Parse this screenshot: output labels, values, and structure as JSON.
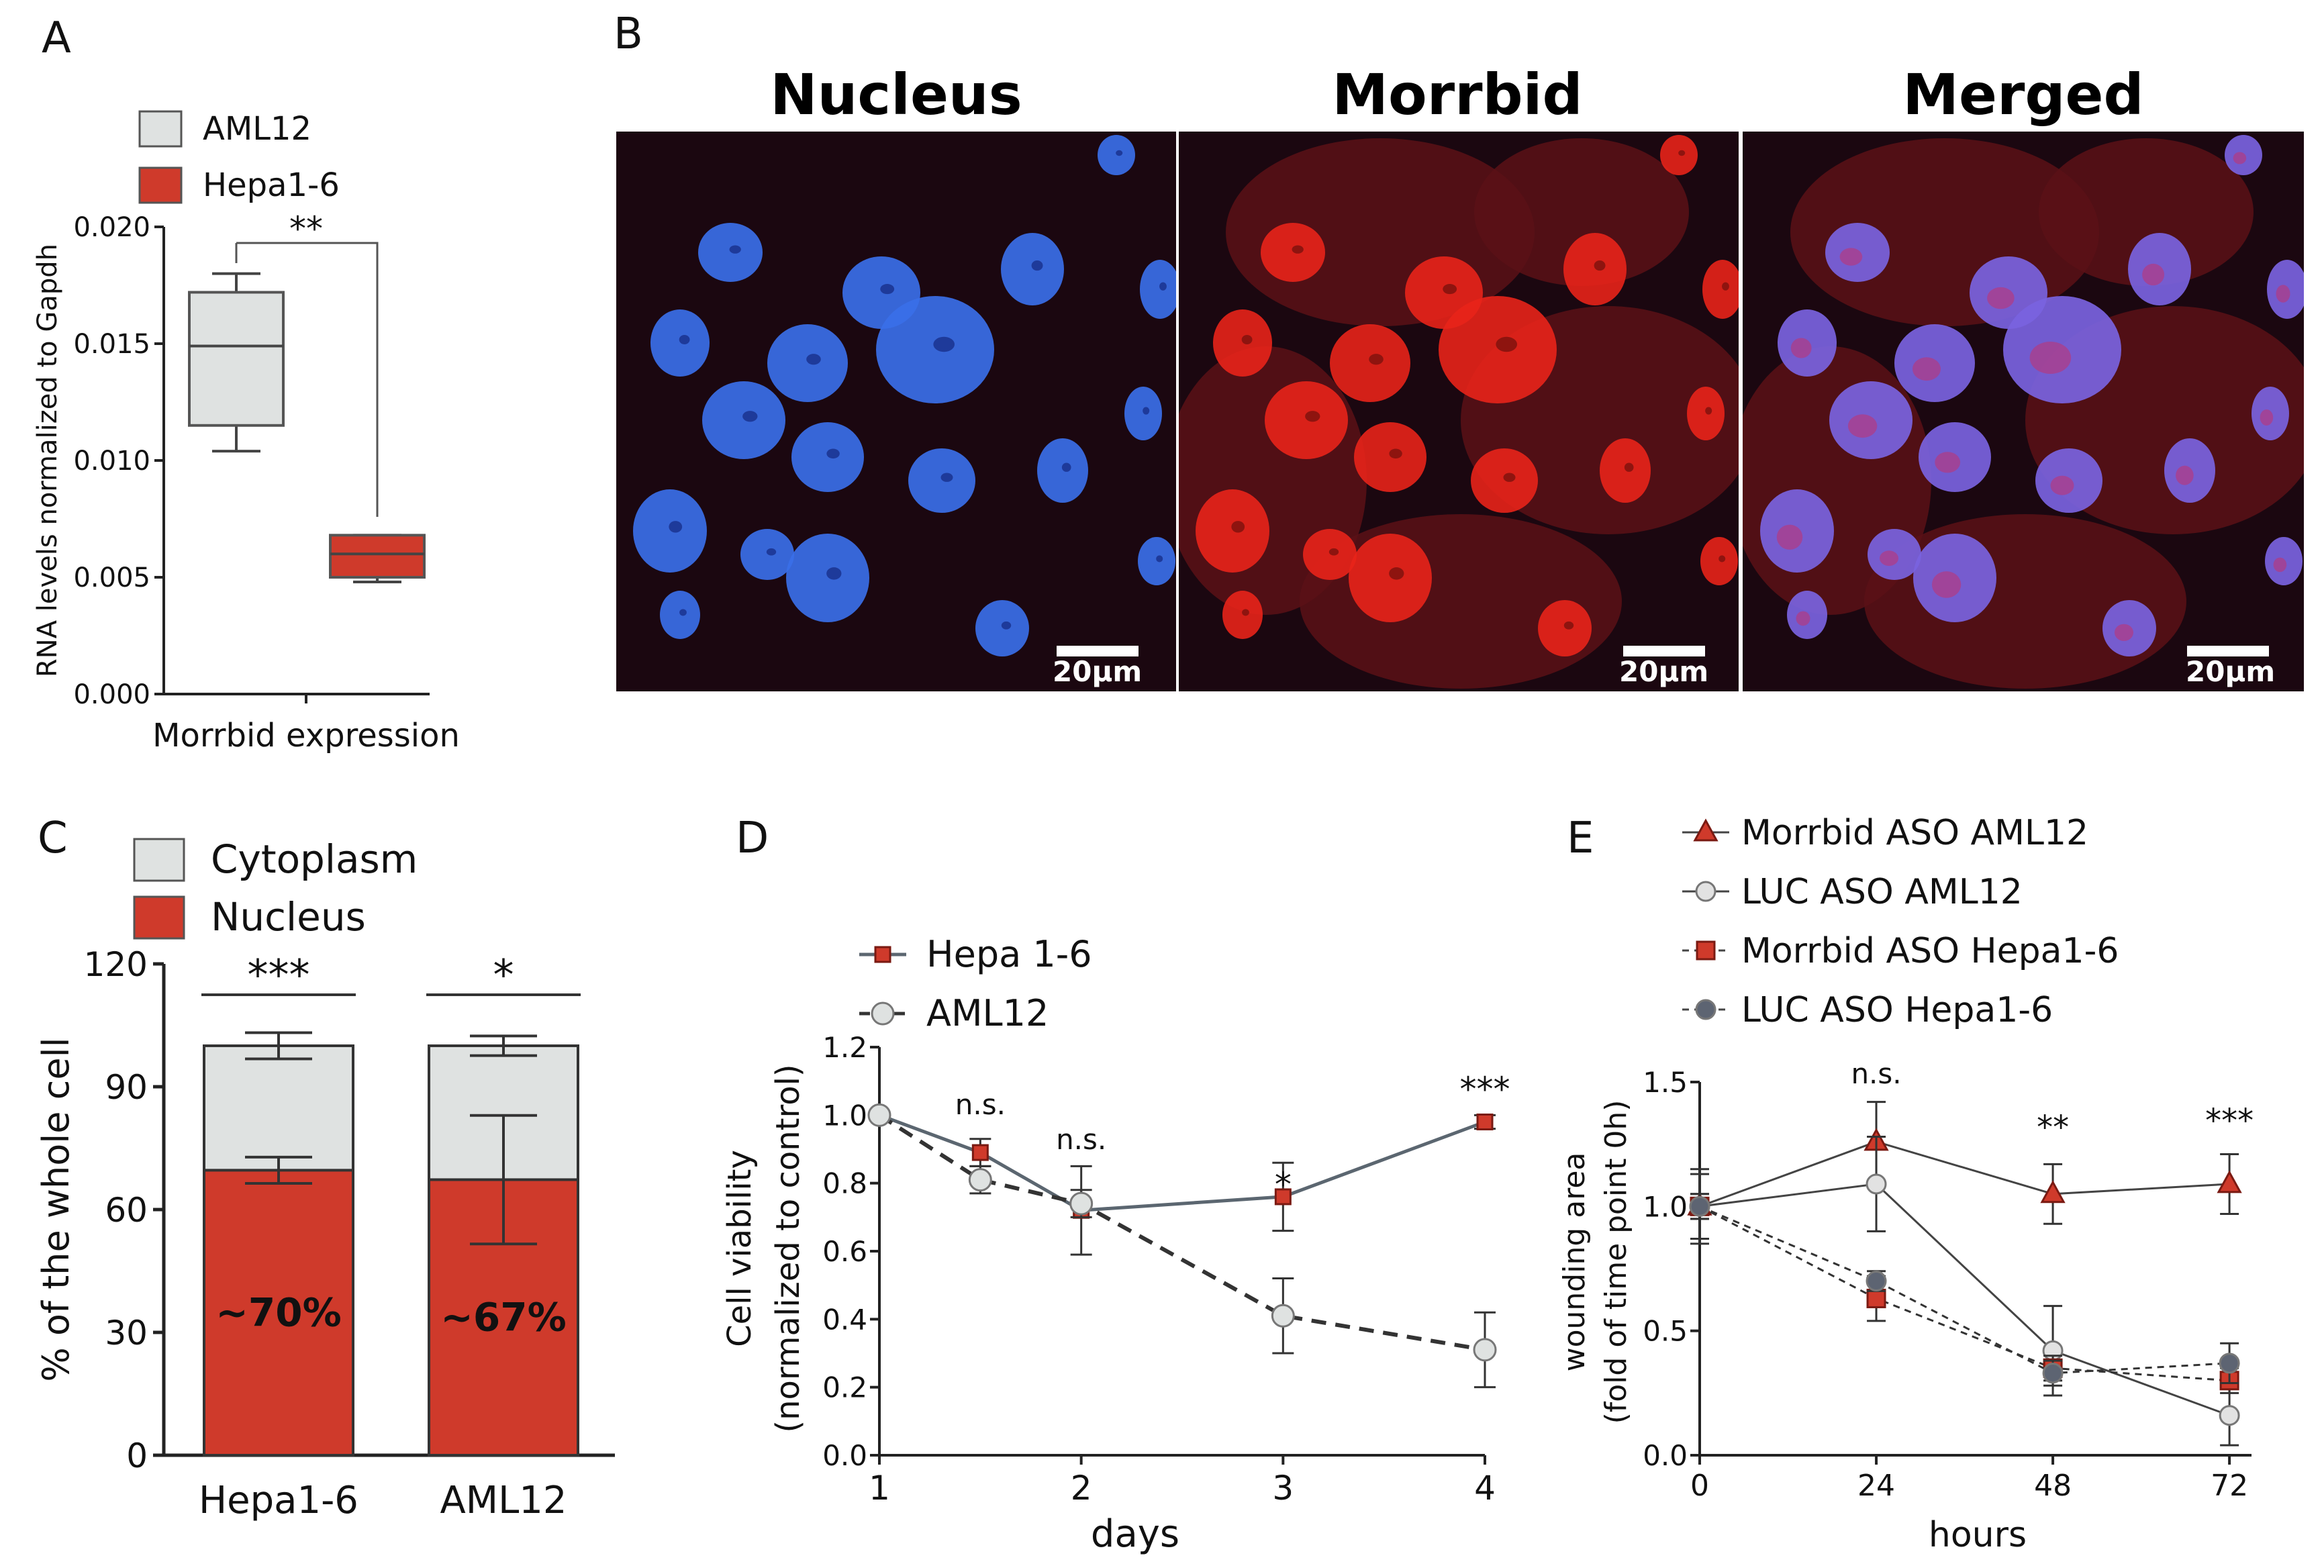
{
  "panel_letters": {
    "a": "A",
    "b": "B",
    "c": "C",
    "d": "D",
    "e": "E"
  },
  "panel_b": {
    "titles": [
      "Nucleus",
      "Morrbid",
      "Merged"
    ],
    "scale_label": "20µm",
    "colors": {
      "nucleus": "#3a6fe8",
      "morrbid": "#e8231a",
      "background": "#1b0710"
    }
  },
  "chart_data": [
    {
      "panel": "A",
      "type": "box",
      "legend": [
        "AML12",
        "Hepa1-6"
      ],
      "colors": [
        "#dfe2e1",
        "#cf3a2b"
      ],
      "ylabel": "RNA levels normalized to Gapdh",
      "xlabel": "Morrbid expression",
      "ylim": [
        0,
        0.02
      ],
      "yticks": [
        "0.000",
        "0.005",
        "0.010",
        "0.015",
        "0.020"
      ],
      "boxes": [
        {
          "name": "AML12",
          "min": 0.0104,
          "q1": 0.0115,
          "median": 0.0149,
          "q3": 0.0172,
          "max": 0.018
        },
        {
          "name": "Hepa1-6",
          "min": 0.0048,
          "q1": 0.005,
          "median": 0.006,
          "q3": 0.0068,
          "max": 0.0068
        }
      ],
      "significance": "**"
    },
    {
      "panel": "C",
      "type": "bar",
      "stacked": true,
      "legend": [
        "Cytoplasm",
        "Nucleus"
      ],
      "colors": [
        "#dfe2e1",
        "#cf3a2b"
      ],
      "categories": [
        "Hepa1-6",
        "AML12"
      ],
      "ylabel": "% of the whole cell",
      "ylim": [
        0,
        120
      ],
      "yticks": [
        "0",
        "30",
        "60",
        "90",
        "120"
      ],
      "series": [
        {
          "name": "Nucleus",
          "values": [
            69.6,
            67.3
          ],
          "errors": [
            3.2,
            15.7
          ]
        },
        {
          "name": "Cytoplasm",
          "values": [
            30.4,
            32.7
          ],
          "errors": [
            3.2,
            2.4
          ]
        }
      ],
      "bar_labels": [
        "~70%",
        "~67%"
      ],
      "significance": [
        "***",
        "*"
      ]
    },
    {
      "panel": "D",
      "type": "line",
      "xlabel": "days",
      "ylabel_lines": [
        "Cell viability",
        "(normalized to control)"
      ],
      "xlim": [
        1,
        4
      ],
      "ylim": [
        0,
        1.2
      ],
      "xticks": [
        "1",
        "2",
        "3",
        "4"
      ],
      "yticks": [
        "0.0",
        "0.2",
        "0.4",
        "0.6",
        "0.8",
        "1.0",
        "1.2"
      ],
      "series": [
        {
          "name": "Hepa 1-6",
          "x": [
            1,
            1.5,
            2,
            3,
            4
          ],
          "y": [
            1.0,
            0.89,
            0.72,
            0.76,
            0.98
          ],
          "err": [
            0,
            0.04,
            0.13,
            0.1,
            0.02
          ]
        },
        {
          "name": "AML12",
          "x": [
            1,
            1.5,
            2,
            3,
            4
          ],
          "y": [
            1.0,
            0.81,
            0.74,
            0.41,
            0.31
          ],
          "err": [
            0,
            0.04,
            0.04,
            0.11,
            0.11
          ]
        }
      ],
      "annotations": [
        {
          "x": 1.5,
          "text": "n.s."
        },
        {
          "x": 2,
          "text": "n.s."
        },
        {
          "x": 3,
          "text": "*"
        },
        {
          "x": 4,
          "text": "***"
        }
      ]
    },
    {
      "panel": "E",
      "type": "line",
      "xlabel": "hours",
      "ylabel_lines": [
        "wounding area",
        "(fold of time point 0h)"
      ],
      "xlim": [
        0,
        75
      ],
      "ylim": [
        0,
        1.5
      ],
      "xticks": [
        "0",
        "24",
        "48",
        "72"
      ],
      "yticks": [
        "0.0",
        "0.5",
        "1.0",
        "1.5"
      ],
      "series": [
        {
          "name": "Morrbid ASO AML12",
          "x": [
            0,
            24,
            48,
            72
          ],
          "y": [
            1.0,
            1.26,
            1.05,
            1.09
          ],
          "err": [
            0.13,
            0.16,
            0.12,
            0.12
          ]
        },
        {
          "name": "LUC ASO AML12",
          "x": [
            0,
            24,
            48,
            72
          ],
          "y": [
            1.0,
            1.09,
            0.42,
            0.16
          ],
          "err": [
            0.15,
            0.19,
            0.18,
            0.12
          ]
        },
        {
          "name": "Morrbid ASO Hepa1-6",
          "x": [
            0,
            24,
            48,
            72
          ],
          "y": [
            1.0,
            0.63,
            0.35,
            0.3
          ],
          "err": [
            0.05,
            0.09,
            0.05,
            0.05
          ]
        },
        {
          "name": "LUC ASO Hepa1-6",
          "x": [
            0,
            24,
            48,
            72
          ],
          "y": [
            1.0,
            0.7,
            0.33,
            0.37
          ],
          "err": [
            0.05,
            0.04,
            0.05,
            0.08
          ]
        }
      ],
      "annotations": [
        {
          "x": 24,
          "text": "n.s."
        },
        {
          "x": 48,
          "text": "**"
        },
        {
          "x": 72,
          "text": "***"
        }
      ]
    }
  ]
}
